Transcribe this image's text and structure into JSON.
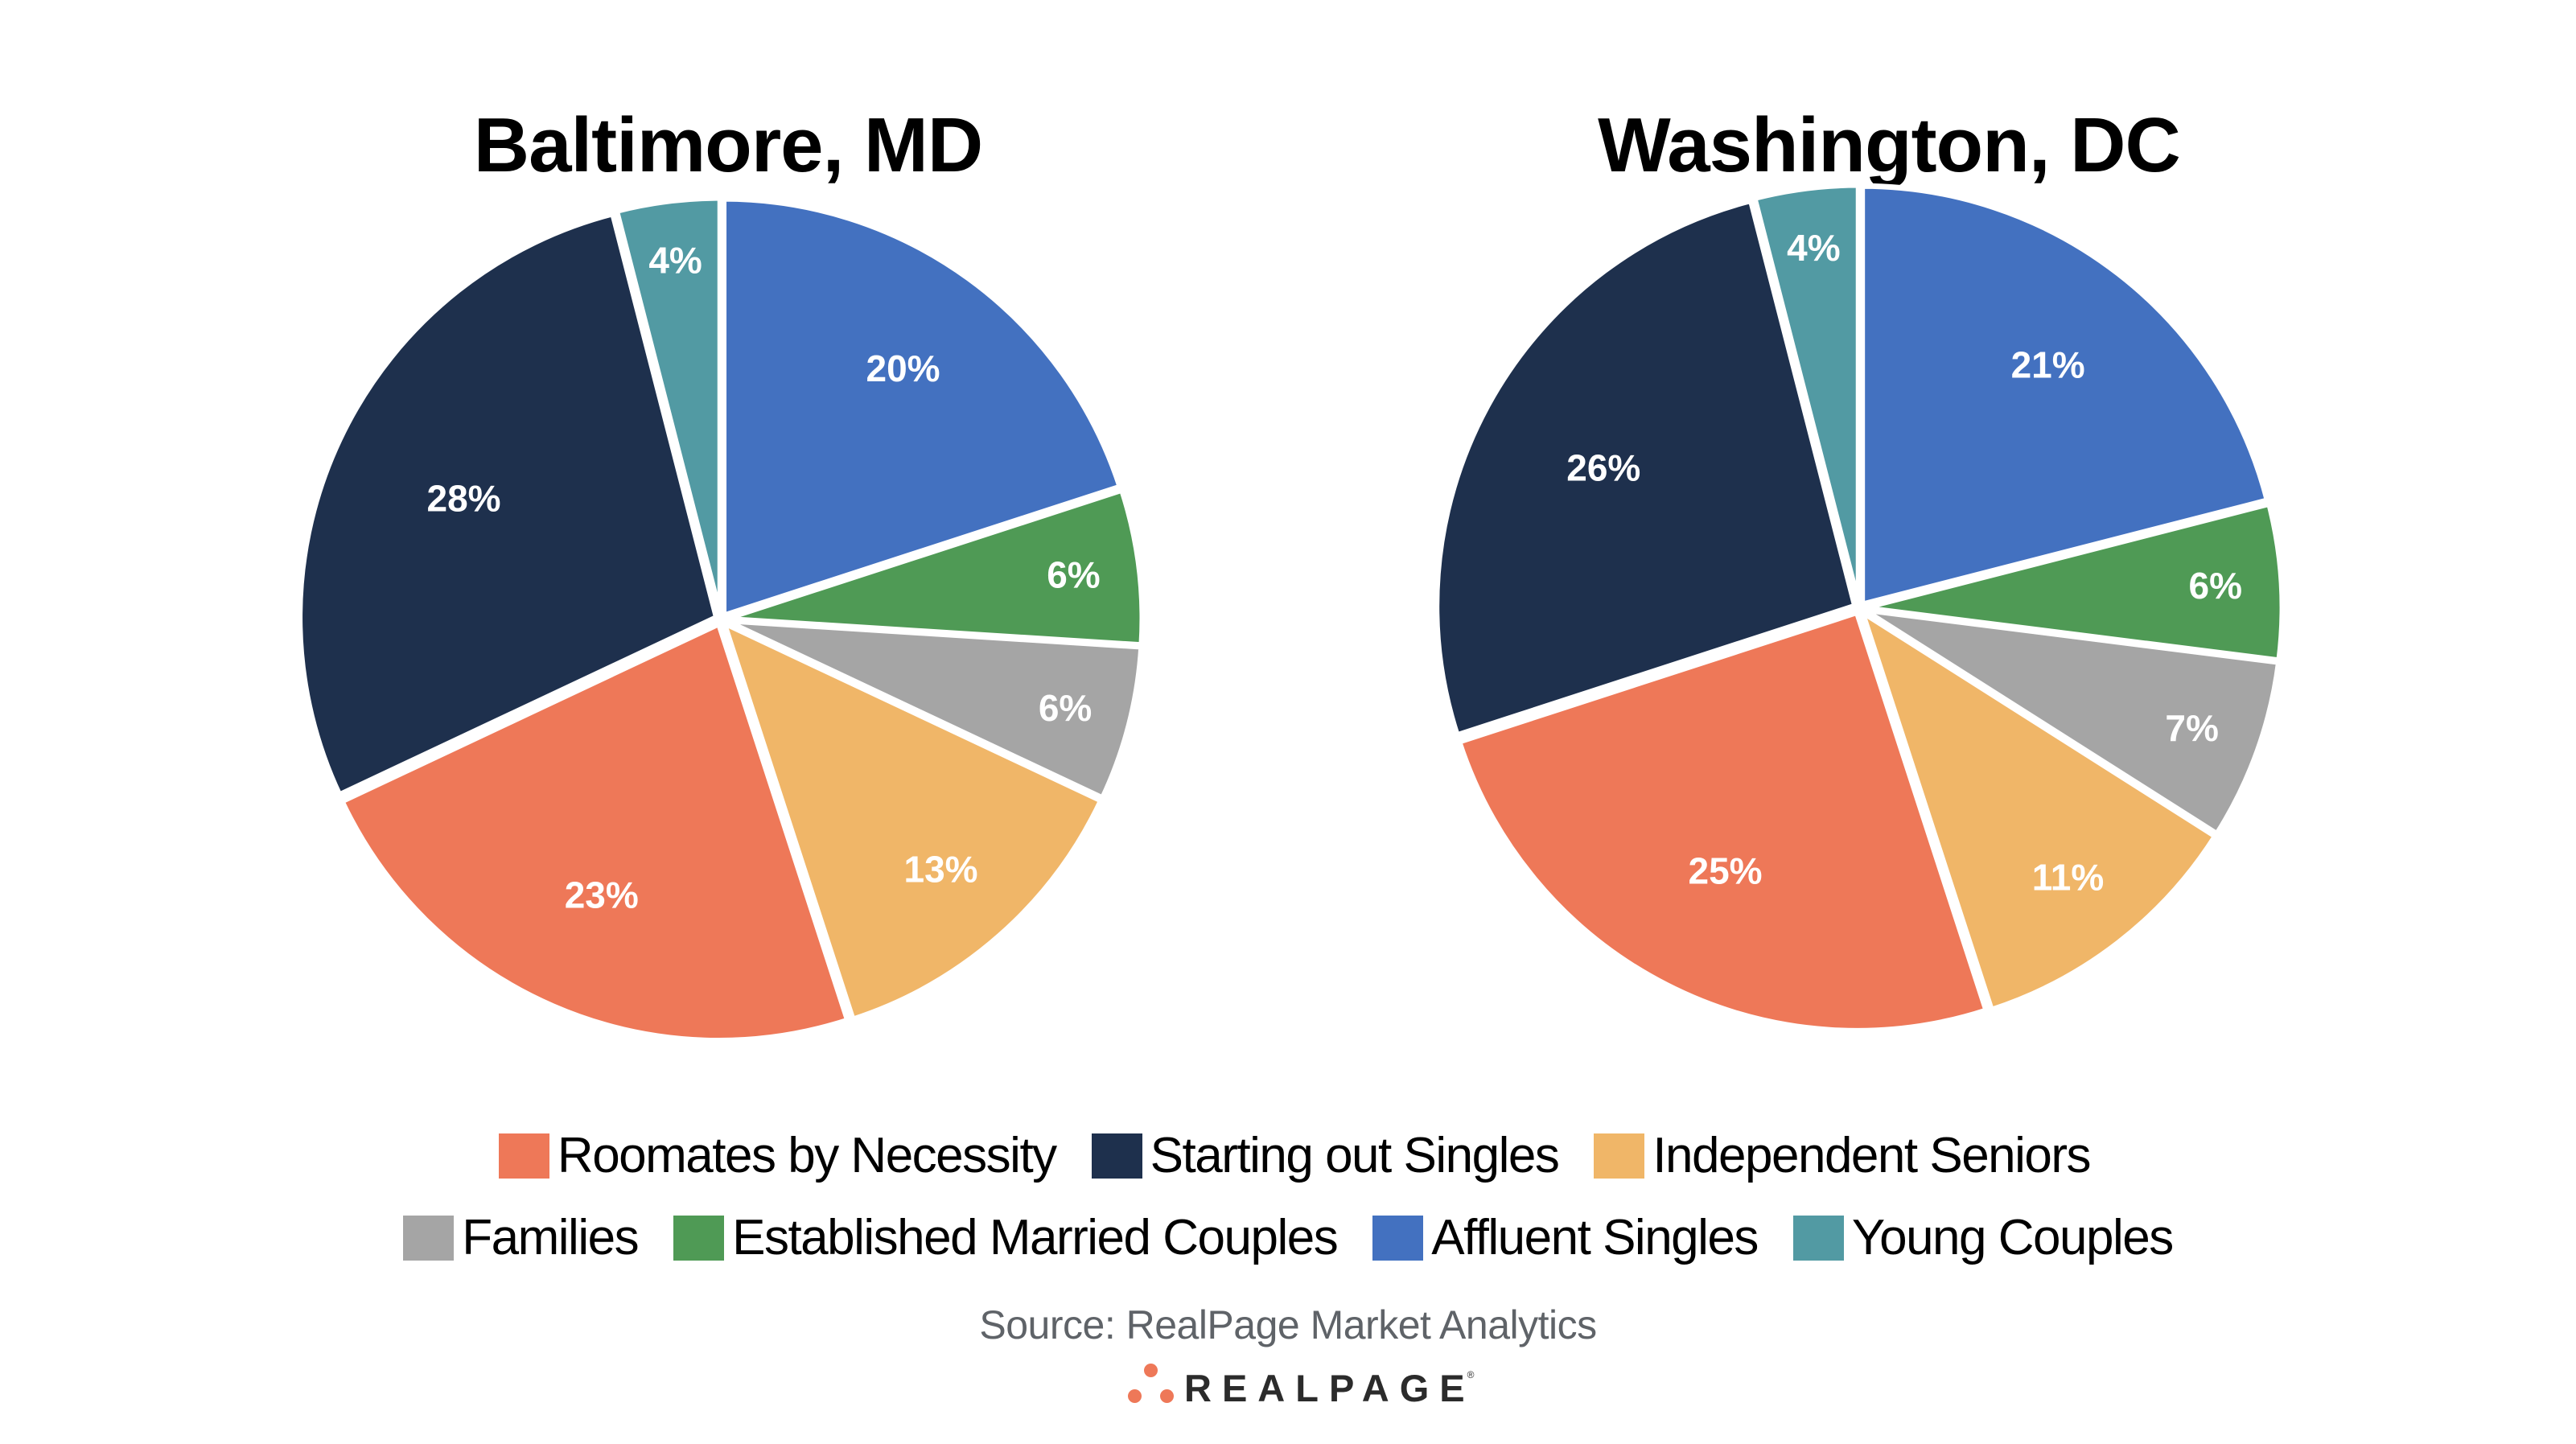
{
  "chart_data": [
    {
      "type": "pie",
      "title": "Baltimore, MD",
      "start": "12 o'clock, clockwise",
      "labels_format": "percent",
      "slices": [
        {
          "label": "Affluent Singles",
          "value": 20,
          "display": "20%",
          "color": "#4371C0"
        },
        {
          "label": "Established Married Couples",
          "value": 6,
          "display": "6%",
          "color": "#4F9A55"
        },
        {
          "label": "Families",
          "value": 6,
          "display": "6%",
          "color": "#A5A5A5"
        },
        {
          "label": "Independent Seniors",
          "value": 13,
          "display": "13%",
          "color": "#F0B668"
        },
        {
          "label": "Roomates by Necessity",
          "value": 23,
          "display": "23%",
          "color": "#EE7858"
        },
        {
          "label": "Starting out Singles",
          "value": 28,
          "display": "28%",
          "color": "#1E304D"
        },
        {
          "label": "Young Couples",
          "value": 4,
          "display": "4%",
          "color": "#529AA3"
        }
      ]
    },
    {
      "type": "pie",
      "title": "Washington, DC",
      "start": "12 o'clock, clockwise",
      "labels_format": "percent",
      "slices": [
        {
          "label": "Affluent Singles",
          "value": 21,
          "display": "21%",
          "color": "#4371C0"
        },
        {
          "label": "Established Married Couples",
          "value": 6,
          "display": "6%",
          "color": "#4F9A55"
        },
        {
          "label": "Families",
          "value": 7,
          "display": "7%",
          "color": "#A5A5A5"
        },
        {
          "label": "Independent Seniors",
          "value": 11,
          "display": "11%",
          "color": "#F0B668"
        },
        {
          "label": "Roomates by Necessity",
          "value": 25,
          "display": "25%",
          "color": "#EE7858"
        },
        {
          "label": "Starting out Singles",
          "value": 26,
          "display": "26%",
          "color": "#1E304D"
        },
        {
          "label": "Young Couples",
          "value": 4,
          "display": "4%",
          "color": "#529AA3"
        }
      ]
    }
  ],
  "legend": {
    "placement": "bottom-center",
    "rows": [
      [
        {
          "label": "Roomates by Necessity",
          "color": "#EE7858"
        },
        {
          "label": "Starting out Singles",
          "color": "#1E304D"
        },
        {
          "label": "Independent Seniors",
          "color": "#F0B668"
        }
      ],
      [
        {
          "label": "Families",
          "color": "#A5A5A5"
        },
        {
          "label": "Established Married Couples",
          "color": "#4F9A55"
        },
        {
          "label": "Affluent Singles",
          "color": "#4371C0"
        },
        {
          "label": "Young Couples",
          "color": "#529AA3"
        }
      ]
    ]
  },
  "footer": {
    "source": "Source: RealPage Market Analytics",
    "logo_text": "REALPAGE",
    "logo_mark": "®",
    "logo_dot_color": "#EE7858"
  }
}
